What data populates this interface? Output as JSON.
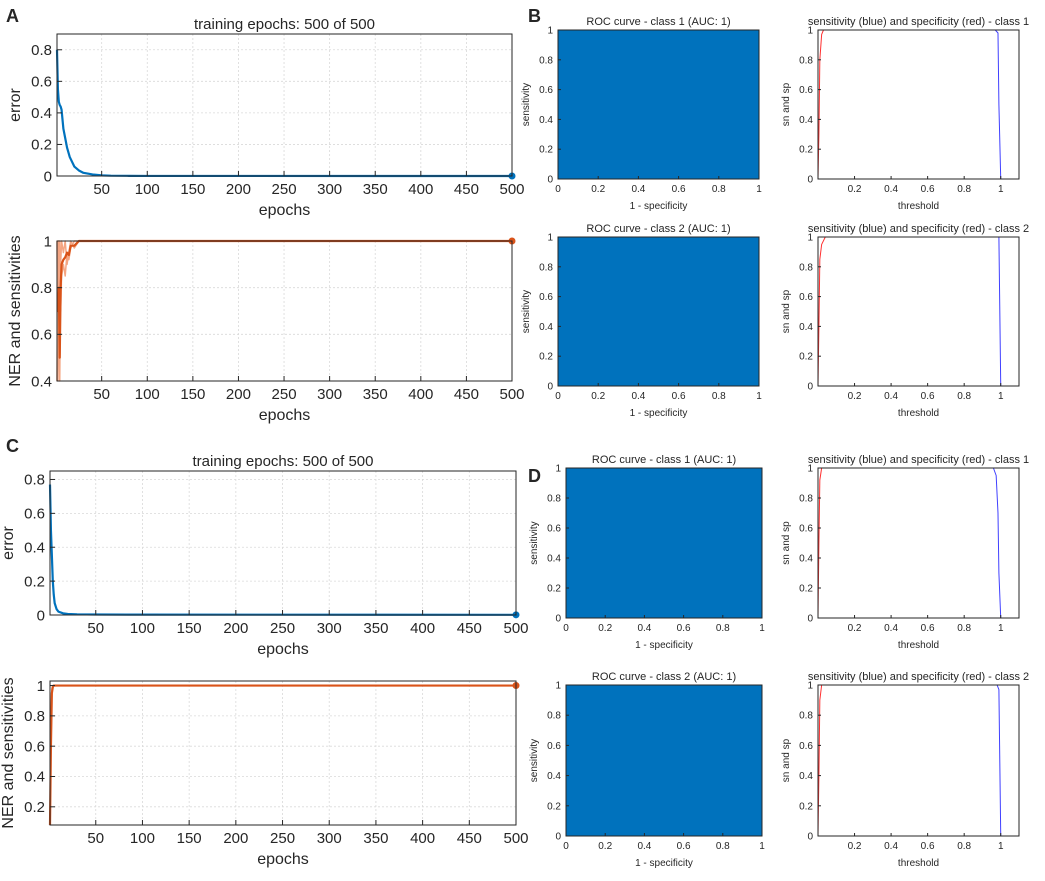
{
  "colors": {
    "blue": "#0072BD",
    "orange": "#D95319",
    "orange_light": "#F4A582",
    "roc_fill": "#0072BD",
    "sens": "#4040FF",
    "spec": "#FF3030"
  },
  "panel_labels": [
    "A",
    "B",
    "C",
    "D"
  ],
  "chart_data": [
    {
      "id": "A-error",
      "panel": "A",
      "type": "line",
      "title": "training epochs: 500 of 500",
      "xlabel": "epochs",
      "ylabel": "error",
      "xlim": [
        1,
        500
      ],
      "ylim": [
        0,
        0.9
      ],
      "xticks": [
        50,
        100,
        150,
        200,
        250,
        300,
        350,
        400,
        450,
        500
      ],
      "yticks": [
        0,
        0.2,
        0.4,
        0.6,
        0.8
      ],
      "ytick_labels": [
        "0",
        "0.2",
        "0.4",
        "0.6",
        "0.8"
      ],
      "grid": true,
      "series": [
        {
          "name": "error",
          "color": "#0072BD",
          "x": [
            1,
            2,
            3,
            4,
            5,
            6,
            8,
            10,
            12,
            15,
            20,
            25,
            30,
            40,
            50,
            60,
            80,
            100,
            500
          ],
          "y": [
            0.8,
            0.55,
            0.47,
            0.45,
            0.44,
            0.42,
            0.3,
            0.24,
            0.18,
            0.12,
            0.06,
            0.035,
            0.02,
            0.01,
            0.004,
            0.002,
            0.001,
            0.0005,
            0.0
          ],
          "end_marker": true
        }
      ]
    },
    {
      "id": "A-ner",
      "panel": "A",
      "type": "line",
      "title": "",
      "xlabel": "epochs",
      "ylabel": "NER and sensitivities",
      "xlim": [
        1,
        500
      ],
      "ylim": [
        0.4,
        1
      ],
      "xticks": [
        50,
        100,
        150,
        200,
        250,
        300,
        350,
        400,
        450,
        500
      ],
      "yticks": [
        0.4,
        0.6,
        0.8,
        1
      ],
      "ytick_labels": [
        "0.4",
        "0.6",
        "0.8",
        "1"
      ],
      "grid": true,
      "series": [
        {
          "name": "sensitivity class 1",
          "color": "#F4A582",
          "x": [
            1,
            2,
            3,
            4,
            5,
            6,
            8,
            10,
            12,
            14,
            16,
            20,
            25,
            500
          ],
          "y": [
            0.4,
            1.0,
            1.0,
            0.4,
            0.9,
            1.0,
            0.95,
            1.0,
            0.9,
            0.95,
            1.0,
            0.97,
            1.0,
            1.0
          ]
        },
        {
          "name": "sensitivity class 2",
          "color": "#F4A582",
          "x": [
            1,
            2,
            3,
            4,
            5,
            6,
            8,
            10,
            12,
            14,
            16,
            20,
            25,
            500
          ],
          "y": [
            1.0,
            0.4,
            0.6,
            1.0,
            0.7,
            0.85,
            0.9,
            0.85,
            0.95,
            0.92,
            0.97,
            1.0,
            1.0,
            1.0
          ]
        },
        {
          "name": "NER",
          "color": "#D95319",
          "x": [
            1,
            2,
            3,
            4,
            5,
            6,
            8,
            10,
            12,
            14,
            16,
            20,
            25,
            500
          ],
          "y": [
            0.7,
            0.7,
            0.8,
            0.5,
            0.8,
            0.9,
            0.92,
            0.93,
            0.95,
            0.94,
            0.98,
            0.98,
            1.0,
            1.0
          ],
          "end_marker": true
        }
      ]
    },
    {
      "id": "B-roc1",
      "panel": "B",
      "type": "area",
      "title": "ROC curve - class 1 (AUC: 1)",
      "xlabel": "1 - specificity",
      "ylabel": "sensitivity",
      "xlim": [
        0,
        1
      ],
      "ylim": [
        0,
        1
      ],
      "xticks": [
        0,
        0.2,
        0.4,
        0.6,
        0.8,
        1
      ],
      "xtick_labels": [
        "0",
        "0.2",
        "0.4",
        "0.6",
        "0.8",
        "1"
      ],
      "yticks": [
        0,
        0.2,
        0.4,
        0.6,
        0.8,
        1
      ],
      "ytick_labels": [
        "0",
        "0.2",
        "0.4",
        "0.6",
        "0.8",
        "1"
      ],
      "auc": 1
    },
    {
      "id": "B-sn1",
      "panel": "B",
      "type": "line",
      "title": "sensitivity (blue) and specificity (red) - class 1",
      "xlabel": "threshold",
      "ylabel": "sn and sp",
      "xlim": [
        0,
        1.1
      ],
      "ylim": [
        0,
        1
      ],
      "xticks": [
        0.2,
        0.4,
        0.6,
        0.8,
        1
      ],
      "xtick_labels": [
        "0.2",
        "0.4",
        "0.6",
        "0.8",
        "1"
      ],
      "yticks": [
        0,
        0.2,
        0.4,
        0.6,
        0.8,
        1
      ],
      "ytick_labels": [
        "0",
        "0.2",
        "0.4",
        "0.6",
        "0.8",
        "1"
      ],
      "series": [
        {
          "name": "sensitivity",
          "color": "#4040FF",
          "x": [
            0,
            0.97,
            0.985,
            0.99,
            1.0,
            1.1
          ],
          "y": [
            1,
            1,
            0.98,
            0.5,
            0,
            0
          ]
        },
        {
          "name": "specificity",
          "color": "#FF3030",
          "x": [
            0,
            0.005,
            0.01,
            0.02,
            0.03,
            1.1
          ],
          "y": [
            0,
            0.3,
            0.8,
            0.97,
            1,
            1
          ]
        },
        {
          "name": "end",
          "color": "#4040FF",
          "x": [
            1.1,
            1.1
          ],
          "y": [
            0,
            1
          ]
        }
      ]
    },
    {
      "id": "B-roc2",
      "panel": "B",
      "type": "area",
      "title": "ROC curve - class 2 (AUC: 1)",
      "xlabel": "1 - specificity",
      "ylabel": "sensitivity",
      "xlim": [
        0,
        1
      ],
      "ylim": [
        0,
        1
      ],
      "xticks": [
        0,
        0.2,
        0.4,
        0.6,
        0.8,
        1
      ],
      "xtick_labels": [
        "0",
        "0.2",
        "0.4",
        "0.6",
        "0.8",
        "1"
      ],
      "yticks": [
        0,
        0.2,
        0.4,
        0.6,
        0.8,
        1
      ],
      "ytick_labels": [
        "0",
        "0.2",
        "0.4",
        "0.6",
        "0.8",
        "1"
      ],
      "auc": 1
    },
    {
      "id": "B-sn2",
      "panel": "B",
      "type": "line",
      "title": "sensitivity (blue) and specificity (red) - class 2",
      "xlabel": "threshold",
      "ylabel": "sn and sp",
      "xlim": [
        0,
        1.1
      ],
      "ylim": [
        0,
        1
      ],
      "xticks": [
        0.2,
        0.4,
        0.6,
        0.8,
        1
      ],
      "xtick_labels": [
        "0.2",
        "0.4",
        "0.6",
        "0.8",
        "1"
      ],
      "yticks": [
        0,
        0.2,
        0.4,
        0.6,
        0.8,
        1
      ],
      "ytick_labels": [
        "0",
        "0.2",
        "0.4",
        "0.6",
        "0.8",
        "1"
      ],
      "series": [
        {
          "name": "sensitivity",
          "color": "#4040FF",
          "x": [
            0,
            0.99,
            1.0,
            1.1
          ],
          "y": [
            1,
            1,
            0,
            0
          ]
        },
        {
          "name": "specificity",
          "color": "#FF3030",
          "x": [
            0,
            0.005,
            0.01,
            0.02,
            0.04,
            1.1
          ],
          "y": [
            0,
            0.4,
            0.85,
            0.95,
            1,
            1
          ]
        }
      ]
    },
    {
      "id": "C-error",
      "panel": "C",
      "type": "line",
      "title": "training epochs: 500 of 500",
      "xlabel": "epochs",
      "ylabel": "error",
      "xlim": [
        1,
        500
      ],
      "ylim": [
        0,
        0.85
      ],
      "xticks": [
        50,
        100,
        150,
        200,
        250,
        300,
        350,
        400,
        450,
        500
      ],
      "yticks": [
        0,
        0.2,
        0.4,
        0.6,
        0.8
      ],
      "ytick_labels": [
        "0",
        "0.2",
        "0.4",
        "0.6",
        "0.8"
      ],
      "grid": true,
      "series": [
        {
          "name": "error",
          "color": "#0072BD",
          "x": [
            1,
            2,
            3,
            4,
            5,
            6,
            8,
            10,
            15,
            20,
            30,
            50,
            100,
            500
          ],
          "y": [
            0.77,
            0.5,
            0.35,
            0.2,
            0.12,
            0.07,
            0.035,
            0.02,
            0.01,
            0.006,
            0.004,
            0.003,
            0.002,
            0.001
          ],
          "end_marker": true
        }
      ]
    },
    {
      "id": "C-ner",
      "panel": "C",
      "type": "line",
      "title": "",
      "xlabel": "epochs",
      "ylabel": "NER and sensitivities",
      "xlim": [
        1,
        500
      ],
      "ylim": [
        0.08,
        1.03
      ],
      "xticks": [
        50,
        100,
        150,
        200,
        250,
        300,
        350,
        400,
        450,
        500
      ],
      "yticks": [
        0.2,
        0.4,
        0.6,
        0.8,
        1
      ],
      "ytick_labels": [
        "0.2",
        "0.4",
        "0.6",
        "0.8",
        "1"
      ],
      "grid": true,
      "series": [
        {
          "name": "sensitivity",
          "color": "#F4A582",
          "x": [
            1,
            2,
            3,
            4,
            500
          ],
          "y": [
            0.1,
            0.7,
            0.98,
            1.0,
            1.0
          ]
        },
        {
          "name": "NER",
          "color": "#D95319",
          "x": [
            1,
            2,
            3,
            4,
            5,
            500
          ],
          "y": [
            0.08,
            0.6,
            0.95,
            0.99,
            1.0,
            1.0
          ],
          "end_marker": true
        }
      ]
    },
    {
      "id": "D-roc1",
      "panel": "D",
      "type": "area",
      "title": "ROC curve - class 1 (AUC: 1)",
      "xlabel": "1 - specificity",
      "ylabel": "sensitivity",
      "xlim": [
        0,
        1
      ],
      "ylim": [
        0,
        1
      ],
      "xticks": [
        0,
        0.2,
        0.4,
        0.6,
        0.8,
        1
      ],
      "xtick_labels": [
        "0",
        "0.2",
        "0.4",
        "0.6",
        "0.8",
        "1"
      ],
      "yticks": [
        0,
        0.2,
        0.4,
        0.6,
        0.8,
        1
      ],
      "ytick_labels": [
        "0",
        "0.2",
        "0.4",
        "0.6",
        "0.8",
        "1"
      ],
      "auc": 1
    },
    {
      "id": "D-sn1",
      "panel": "D",
      "type": "line",
      "title": "sensitivity (blue) and specificity (red) - class 1",
      "xlabel": "threshold",
      "ylabel": "sn and sp",
      "xlim": [
        0,
        1.1
      ],
      "ylim": [
        0,
        1
      ],
      "xticks": [
        0.2,
        0.4,
        0.6,
        0.8,
        1
      ],
      "xtick_labels": [
        "0.2",
        "0.4",
        "0.6",
        "0.8",
        "1"
      ],
      "yticks": [
        0,
        0.2,
        0.4,
        0.6,
        0.8,
        1
      ],
      "ytick_labels": [
        "0",
        "0.2",
        "0.4",
        "0.6",
        "0.8",
        "1"
      ],
      "series": [
        {
          "name": "sensitivity",
          "color": "#4040FF",
          "x": [
            0,
            0.96,
            0.975,
            0.985,
            0.99,
            1.0,
            1.1
          ],
          "y": [
            1,
            1,
            0.95,
            0.7,
            0.3,
            0,
            0
          ]
        },
        {
          "name": "specificity",
          "color": "#FF3030",
          "x": [
            0,
            0.005,
            0.01,
            0.02,
            1.1
          ],
          "y": [
            0,
            0.5,
            0.92,
            1,
            1
          ]
        },
        {
          "name": "end",
          "color": "#4040FF",
          "x": [
            1.1,
            1.1
          ],
          "y": [
            0,
            1
          ]
        }
      ]
    },
    {
      "id": "D-roc2",
      "panel": "D",
      "type": "area",
      "title": "ROC curve - class 2 (AUC: 1)",
      "xlabel": "1 - specificity",
      "ylabel": "sensitivity",
      "xlim": [
        0,
        1
      ],
      "ylim": [
        0,
        1
      ],
      "xticks": [
        0,
        0.2,
        0.4,
        0.6,
        0.8,
        1
      ],
      "xtick_labels": [
        "0",
        "0.2",
        "0.4",
        "0.6",
        "0.8",
        "1"
      ],
      "yticks": [
        0,
        0.2,
        0.4,
        0.6,
        0.8,
        1
      ],
      "ytick_labels": [
        "0",
        "0.2",
        "0.4",
        "0.6",
        "0.8",
        "1"
      ],
      "auc": 1
    },
    {
      "id": "D-sn2",
      "panel": "D",
      "type": "line",
      "title": "sensitivity (blue) and specificity (red) - class 2",
      "xlabel": "threshold",
      "ylabel": "sn and sp",
      "xlim": [
        0,
        1.1
      ],
      "ylim": [
        0,
        1
      ],
      "xticks": [
        0.2,
        0.4,
        0.6,
        0.8,
        1
      ],
      "xtick_labels": [
        "0.2",
        "0.4",
        "0.6",
        "0.8",
        "1"
      ],
      "yticks": [
        0,
        0.2,
        0.4,
        0.6,
        0.8,
        1
      ],
      "ytick_labels": [
        "0",
        "0.2",
        "0.4",
        "0.6",
        "0.8",
        "1"
      ],
      "series": [
        {
          "name": "sensitivity",
          "color": "#4040FF",
          "x": [
            0,
            0.98,
            0.99,
            1.0,
            1.1
          ],
          "y": [
            1,
            1,
            0.97,
            0,
            0
          ]
        },
        {
          "name": "specificity",
          "color": "#FF3030",
          "x": [
            0,
            0.005,
            0.01,
            0.02,
            1.1
          ],
          "y": [
            0,
            0.4,
            0.9,
            1,
            1
          ]
        }
      ]
    }
  ]
}
